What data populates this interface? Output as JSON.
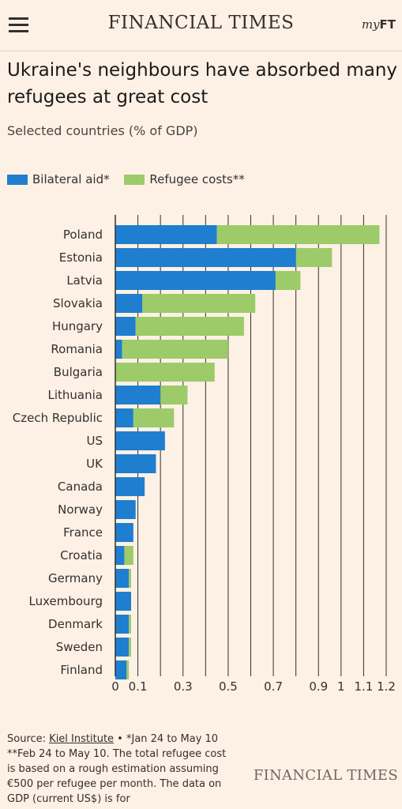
{
  "header": {
    "brand": "FINANCIAL TIMES",
    "myft_prefix": "my",
    "myft_suffix": "FT",
    "menu_icon": "hamburger-menu-icon"
  },
  "article": {
    "headline": "Ukraine's neighbours have absorbed many refugees at great cost",
    "subtitle": "Selected countries (% of GDP)"
  },
  "chart_data": {
    "type": "bar",
    "orientation": "horizontal",
    "stacked": true,
    "categories": [
      "Poland",
      "Estonia",
      "Latvia",
      "Slovakia",
      "Hungary",
      "Romania",
      "Bulgaria",
      "Lithuania",
      "Czech Republic",
      "US",
      "UK",
      "Canada",
      "Norway",
      "France",
      "Croatia",
      "Germany",
      "Luxembourg",
      "Denmark",
      "Sweden",
      "Finland"
    ],
    "series": [
      {
        "name": "Bilateral aid*",
        "color": "#1f7ed0",
        "values": [
          0.45,
          0.8,
          0.71,
          0.12,
          0.09,
          0.03,
          0.0,
          0.2,
          0.08,
          0.22,
          0.18,
          0.13,
          0.09,
          0.08,
          0.04,
          0.06,
          0.07,
          0.06,
          0.06,
          0.05
        ]
      },
      {
        "name": "Refugee costs**",
        "color": "#9dcb6a",
        "values": [
          0.72,
          0.16,
          0.11,
          0.5,
          0.48,
          0.47,
          0.44,
          0.12,
          0.18,
          0.0,
          0.0,
          0.0,
          0.0,
          0.0,
          0.04,
          0.01,
          0.0,
          0.01,
          0.01,
          0.01
        ]
      }
    ],
    "xticks": [
      0,
      0.1,
      0.3,
      0.5,
      0.7,
      0.9,
      1,
      1.1,
      1.2
    ],
    "xtick_labels": [
      "0",
      "0.1",
      "0.3",
      "0.5",
      "0.7",
      "0.9",
      "1",
      "1.1",
      "1.2"
    ],
    "xlim": [
      0,
      1.2
    ],
    "grid": true,
    "legend_position": "top-left"
  },
  "source": {
    "prefix": "Source: ",
    "link": "Kiel Institute",
    "text": " • *Jan 24 to May 10 **Feb 24 to May 10. The total refugee cost is based on a rough estimation assuming €500 per refugee per month. The data on GDP (current US$) is for"
  },
  "footer": {
    "brand": "FINANCIAL TIMES"
  }
}
